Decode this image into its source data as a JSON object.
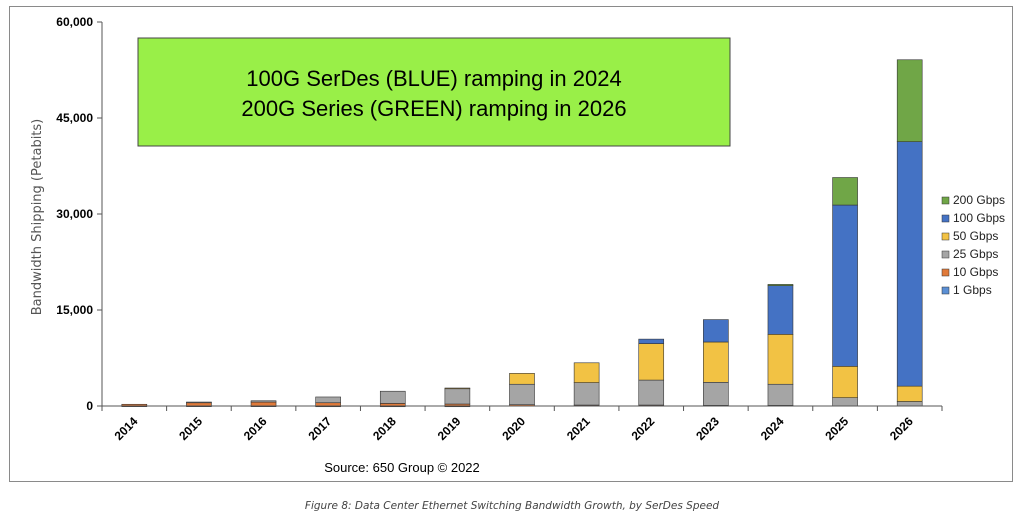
{
  "caption": "Figure 8: Data Center Ethernet Switching Bandwidth Growth, by SerDes Speed",
  "chart_data": {
    "type": "bar",
    "stacked": true,
    "title": "",
    "ylabel": "Bandwidth Shipping (Petabits)",
    "xlabel": "",
    "ylim": [
      0,
      60000
    ],
    "yticks": [
      0,
      15000,
      30000,
      45000,
      60000
    ],
    "ytick_labels": [
      "0",
      "15,000",
      "30,000",
      "45,000",
      "60,000"
    ],
    "categories": [
      "2014",
      "2015",
      "2016",
      "2017",
      "2018",
      "2019",
      "2020",
      "2021",
      "2022",
      "2023",
      "2024",
      "2025",
      "2026"
    ],
    "series": [
      {
        "name": "1 Gbps",
        "color": "#5b8fd4",
        "values": [
          20,
          20,
          20,
          10,
          10,
          10,
          0,
          0,
          0,
          0,
          0,
          0,
          0
        ]
      },
      {
        "name": "10 Gbps",
        "color": "#e07a3a",
        "values": [
          250,
          500,
          600,
          500,
          400,
          300,
          200,
          150,
          150,
          100,
          100,
          0,
          0
        ]
      },
      {
        "name": "25 Gbps",
        "color": "#a5a5a5",
        "values": [
          0,
          100,
          200,
          900,
          1900,
          2400,
          3200,
          3500,
          3900,
          3600,
          3300,
          1300,
          700
        ]
      },
      {
        "name": "50 Gbps",
        "color": "#f2c244",
        "values": [
          0,
          0,
          0,
          0,
          0,
          100,
          1700,
          3100,
          5700,
          6300,
          7800,
          4900,
          2400
        ]
      },
      {
        "name": "100 Gbps",
        "color": "#4472c4",
        "values": [
          0,
          0,
          0,
          0,
          0,
          0,
          0,
          0,
          700,
          3500,
          7600,
          25200,
          38200
        ]
      },
      {
        "name": "200 Gbps",
        "color": "#70a647",
        "values": [
          0,
          0,
          0,
          0,
          0,
          0,
          0,
          0,
          0,
          0,
          200,
          4300,
          12800
        ]
      }
    ],
    "legend_order": [
      "200 Gbps",
      "100 Gbps",
      "50 Gbps",
      "25 Gbps",
      "10 Gbps",
      "1 Gbps"
    ],
    "legend_position": "right",
    "annotation": {
      "line1": "100G SerDes (BLUE) ramping in 2024",
      "line2": "200G Series (GREEN) ramping in 2026",
      "background": "#99ef48"
    },
    "source": "Source: 650 Group © 2022"
  }
}
